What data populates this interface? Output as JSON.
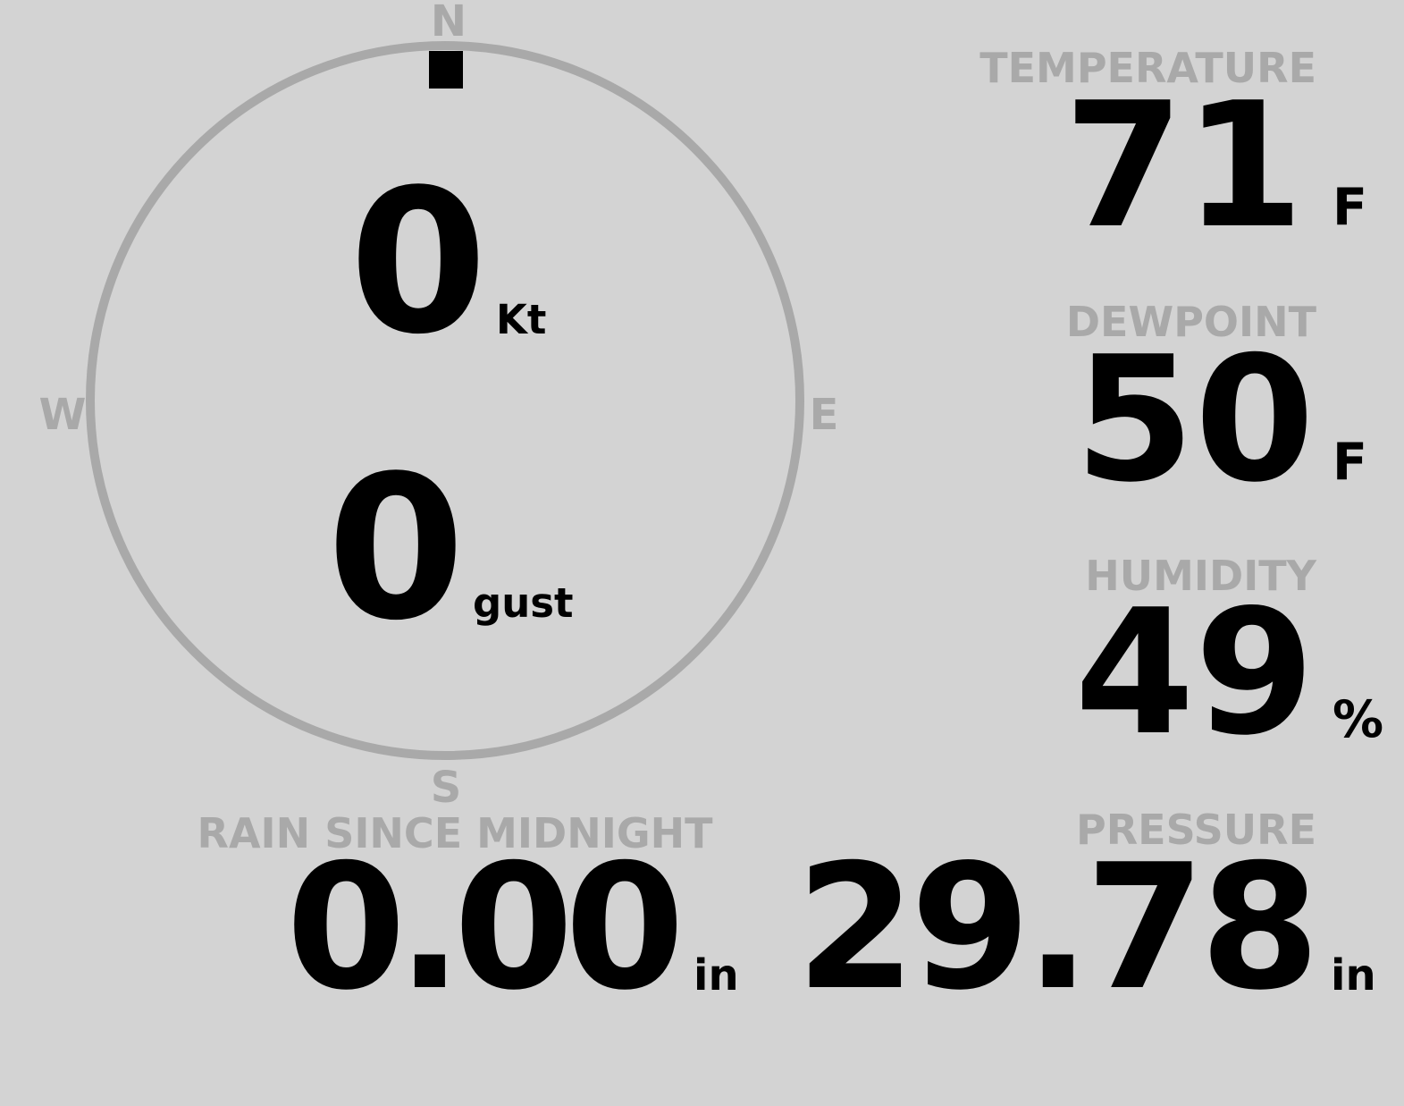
{
  "compass": {
    "north": "N",
    "east": "E",
    "south": "S",
    "west": "W",
    "ring_color": "#a9a9a9",
    "wind_direction_deg": 0
  },
  "wind": {
    "speed": "0",
    "speed_unit": "Kt",
    "gust": "0",
    "gust_unit": "gust"
  },
  "temperature": {
    "label": "TEMPERATURE",
    "value": "71",
    "unit": "F"
  },
  "dewpoint": {
    "label": "DEWPOINT",
    "value": "50",
    "unit": "F"
  },
  "humidity": {
    "label": "HUMIDITY",
    "value": "49",
    "unit": "%"
  },
  "pressure": {
    "label": "PRESSURE",
    "value": "29.78",
    "unit": "in"
  },
  "rain": {
    "label": "RAIN SINCE MIDNIGHT",
    "value": "0.00",
    "unit": "in"
  },
  "colors": {
    "background": "#d3d3d3",
    "label": "#a9a9a9",
    "value": "#000000"
  }
}
